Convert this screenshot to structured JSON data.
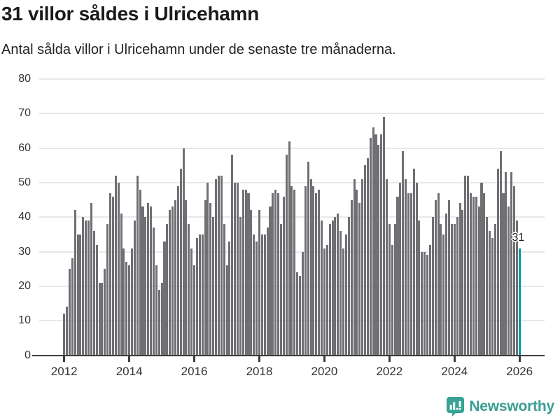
{
  "header": {
    "title": "31 villor såldes i Ulricehamn",
    "subtitle": "Antal sålda villor i Ulricehamn under de senaste tre månaderna."
  },
  "chart_data": {
    "type": "bar",
    "title": "31 villor såldes i Ulricehamn",
    "subtitle": "Antal sålda villor i Ulricehamn under de senaste tre månaderna.",
    "ylabel": "",
    "xlabel": "",
    "ylim": [
      0,
      80
    ],
    "y_ticks": [
      0,
      10,
      20,
      30,
      40,
      50,
      60,
      70,
      80
    ],
    "x_tick_labels": [
      "2012",
      "2014",
      "2016",
      "2018",
      "2020",
      "2022",
      "2024",
      "2026"
    ],
    "x_tick_bar_index": [
      0,
      24,
      48,
      72,
      96,
      120,
      144,
      168
    ],
    "x_months_start": "2012-01",
    "x_months_end": "2026-01",
    "grid": "horizontal",
    "legend": "none",
    "values": [
      12,
      14,
      25,
      28,
      42,
      35,
      35,
      40,
      39,
      39,
      44,
      36,
      32,
      21,
      21,
      25,
      38,
      47,
      46,
      52,
      50,
      41,
      31,
      27,
      26,
      31,
      39,
      52,
      48,
      43,
      40,
      44,
      43,
      37,
      26,
      19,
      21,
      33,
      38,
      42,
      43,
      45,
      49,
      54,
      60,
      45,
      38,
      31,
      26,
      34,
      35,
      35,
      45,
      50,
      44,
      40,
      51,
      52,
      52,
      38,
      26,
      33,
      58,
      50,
      50,
      40,
      48,
      48,
      47,
      42,
      35,
      33,
      42,
      35,
      35,
      37,
      43,
      47,
      48,
      47,
      38,
      46,
      58,
      62,
      49,
      48,
      24,
      23,
      30,
      49,
      56,
      51,
      49,
      47,
      48,
      39,
      31,
      32,
      38,
      39,
      40,
      41,
      36,
      31,
      35,
      40,
      45,
      51,
      48,
      44,
      51,
      55,
      57,
      63,
      66,
      64,
      61,
      64,
      69,
      51,
      38,
      32,
      38,
      46,
      50,
      59,
      51,
      47,
      47,
      54,
      50,
      39,
      30,
      30,
      29,
      32,
      40,
      45,
      47,
      38,
      35,
      41,
      45,
      38,
      38,
      40,
      44,
      42,
      52,
      52,
      47,
      46,
      46,
      43,
      50,
      47,
      40,
      36,
      34,
      38,
      54,
      59,
      47,
      53,
      43,
      53,
      49,
      39,
      31
    ],
    "highlight_index": 168,
    "highlight_value_label": "31",
    "bar_color": "#706f74",
    "highlight_color": "#0097a0"
  },
  "colors": {
    "bar_gray": "#706f74",
    "highlight_teal": "#0097a0",
    "gridline": "#e8e8e8",
    "axis": "#3d3d3d",
    "title_text": "#1a1a1a",
    "tick_text": "#333333",
    "brand_teal": "#3a9e93"
  },
  "footer": {
    "brand": "Newsworthy",
    "logo_icon": "speech-bubble-bar-chart"
  }
}
